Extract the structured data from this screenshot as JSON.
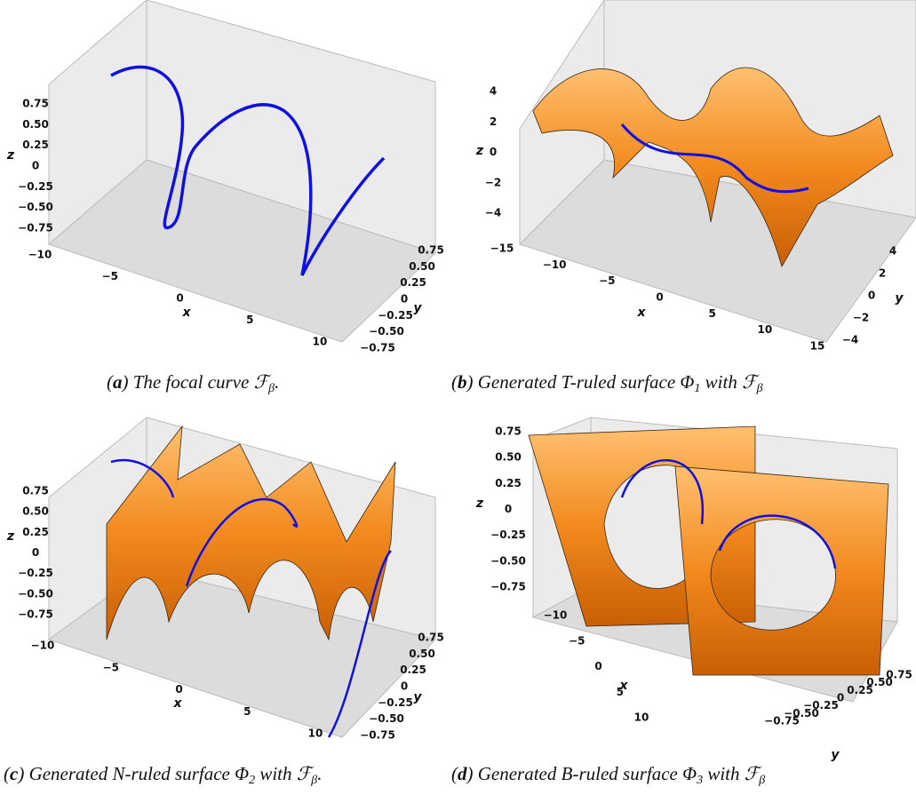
{
  "panels": [
    {
      "z_label": "z",
      "x_label": "x",
      "y_label": "y",
      "z_ticks": [
        "0.75",
        "0.50",
        "0.25",
        "0",
        "−0.25",
        "−0.50",
        "−0.75"
      ],
      "x_ticks": [
        "−10",
        "−5",
        "0",
        "5",
        "10"
      ],
      "y_ticks": [
        "0.75",
        "0.50",
        "0.25",
        "0",
        "−0.25",
        "−0.50",
        "−0.75"
      ],
      "caption": [
        {
          "text": "("
        },
        {
          "text": "a",
          "bold": true
        },
        {
          "text": ") The focal curve ℱ"
        },
        {
          "text": "β",
          "sub": true
        },
        {
          "text": "."
        }
      ]
    },
    {
      "z_label": "z",
      "x_label": "x",
      "y_label": "y",
      "z_ticks": [
        "4",
        "2",
        "0",
        "−2",
        "−4"
      ],
      "x_ticks": [
        "−15",
        "−10",
        "−5",
        "0",
        "5",
        "10",
        "15"
      ],
      "y_ticks": [
        "4",
        "2",
        "0",
        "−2",
        "−4"
      ],
      "caption": [
        {
          "text": "("
        },
        {
          "text": "b",
          "bold": true
        },
        {
          "text": ") Generated T-ruled surface Φ"
        },
        {
          "text": "1",
          "sub": true
        },
        {
          "text": " with ℱ"
        },
        {
          "text": "β",
          "sub": true
        }
      ]
    },
    {
      "z_label": "z",
      "x_label": "x",
      "y_label": "y",
      "z_ticks": [
        "0.75",
        "0.50",
        "0.25",
        "0",
        "−0.25",
        "−0.50",
        "−0.75"
      ],
      "x_ticks": [
        "−10",
        "−5",
        "0",
        "5",
        "10"
      ],
      "y_ticks": [
        "0.75",
        "0.50",
        "0.25",
        "0",
        "−0.25",
        "−0.50",
        "−0.75"
      ],
      "caption": [
        {
          "text": "("
        },
        {
          "text": "c",
          "bold": true
        },
        {
          "text": ") Generated N-ruled surface Φ"
        },
        {
          "text": "2",
          "sub": true
        },
        {
          "text": " with ℱ"
        },
        {
          "text": "β",
          "sub": true
        },
        {
          "text": "."
        }
      ]
    },
    {
      "z_label": "z",
      "x_label": "x",
      "y_label": "y",
      "z_ticks": [
        "0.75",
        "0.50",
        "0.25",
        "0",
        "−0.25",
        "−0.50",
        "−0.75"
      ],
      "x_ticks": [
        "−10",
        "−5",
        "0",
        "5",
        "10"
      ],
      "y_ticks": [
        "0.75",
        "0.50",
        "0.25",
        "0",
        "−0.25",
        "−0.50",
        "−0.75"
      ],
      "caption": [
        {
          "text": "("
        },
        {
          "text": "d",
          "bold": true
        },
        {
          "text": ") Generated B-ruled surface Φ"
        },
        {
          "text": "3",
          "sub": true
        },
        {
          "text": " with ℱ"
        },
        {
          "text": "β",
          "sub": true
        }
      ]
    }
  ]
}
